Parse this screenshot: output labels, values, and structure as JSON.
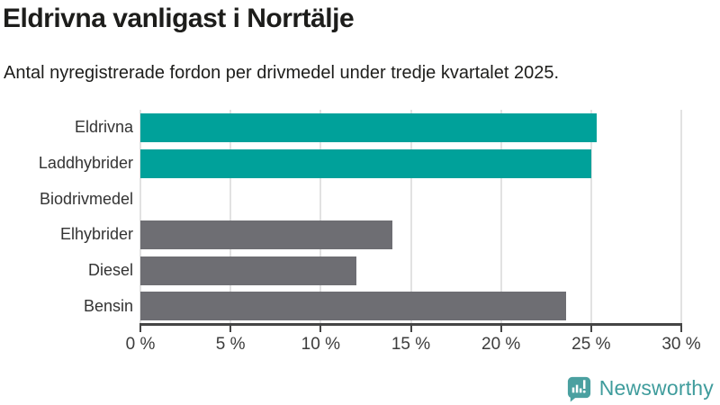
{
  "chart_data": {
    "type": "bar",
    "orientation": "horizontal",
    "title": "Eldrivna vanligast i Norrtälje",
    "subtitle": "Antal nyregistrerade fordon per drivmedel under tredje kvartalet 2025.",
    "categories": [
      "Eldrivna",
      "Laddhybrider",
      "Biodrivmedel",
      "Elhybrider",
      "Diesel",
      "Bensin"
    ],
    "values": [
      25.3,
      25.0,
      0,
      14.0,
      12.0,
      23.6
    ],
    "unit": "%",
    "xlim": [
      0,
      30
    ],
    "x_tick_values": [
      0,
      5,
      10,
      15,
      20,
      25,
      30
    ],
    "x_tick_labels": [
      "0 %",
      "5 %",
      "10 %",
      "15 %",
      "20 %",
      "25 %",
      "30 %"
    ],
    "bar_colors": [
      "#00a19a",
      "#00a19a",
      "#6e6e73",
      "#6e6e73",
      "#6e6e73",
      "#6e6e73"
    ],
    "highlight_color": "#00a19a",
    "default_color": "#6e6e73",
    "grid": true,
    "gridline_color": "#e2e2e2",
    "axis_color": "#454545",
    "legend": "none"
  },
  "branding": {
    "logo_text": "Newsworthy",
    "logo_color": "#3f9c9c",
    "logo_icon": "speech-bubble-bar-chart-icon"
  }
}
